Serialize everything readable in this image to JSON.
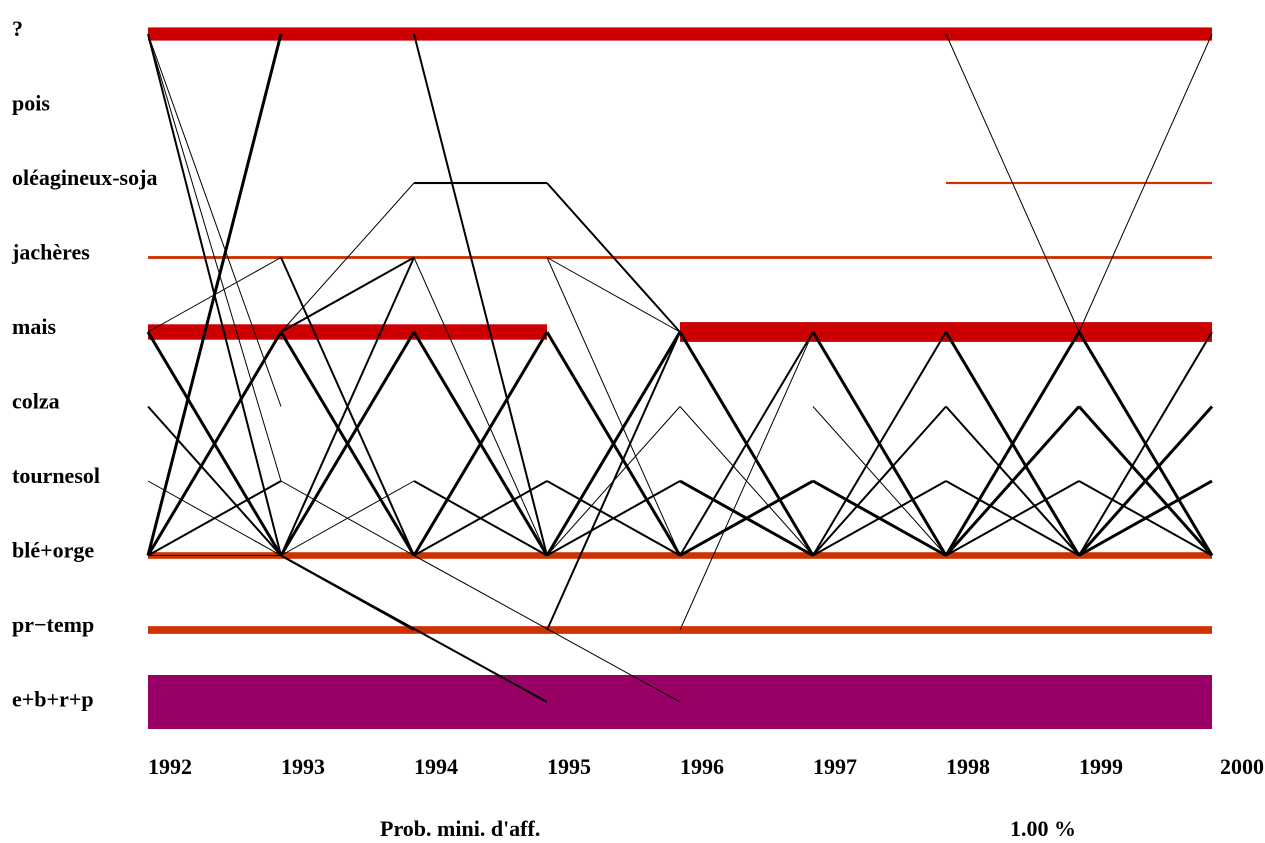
{
  "chart_data": {
    "type": "transition-diagram",
    "years": [
      "1992",
      "1993",
      "1994",
      "1995",
      "1996",
      "1997",
      "1998",
      "1999",
      "2000"
    ],
    "crops": [
      "?",
      "pois",
      "oléagineux-soja",
      "jachères",
      "mais",
      "colza",
      "tournesol",
      "blé+orge",
      "pr−temp",
      "e+b+r+p"
    ],
    "colors": {
      "red": "#cc0000",
      "orange": "#cc3300",
      "purple": "#990066",
      "line": "#000000"
    },
    "bands": [
      {
        "crop": "?",
        "from": 0,
        "to": 8,
        "weight": 6,
        "color": "red"
      },
      {
        "crop": "oléagineux-soja",
        "from": 2,
        "to": 3,
        "weight": 1,
        "color": "orange"
      },
      {
        "crop": "oléagineux-soja",
        "from": 6,
        "to": 8,
        "weight": 1,
        "color": "orange"
      },
      {
        "crop": "jachères",
        "from": 0,
        "to": 8,
        "weight": 1.3,
        "color": "orange"
      },
      {
        "crop": "mais",
        "from": 0,
        "to": 3,
        "weight": 7,
        "color": "red"
      },
      {
        "crop": "mais",
        "from": 4,
        "to": 8,
        "weight": 9,
        "color": "red"
      },
      {
        "crop": "blé+orge",
        "from": 0,
        "to": 8,
        "weight": 3,
        "color": "orange"
      },
      {
        "crop": "pr−temp",
        "from": 0,
        "to": 8,
        "weight": 3.5,
        "color": "orange"
      },
      {
        "crop": "e+b+r+p",
        "from": 0,
        "to": 8,
        "weight": 24,
        "color": "purple"
      }
    ],
    "transitions": [
      {
        "from": [
          0,
          "?"
        ],
        "to": [
          1,
          "blé+orge"
        ],
        "w": 2
      },
      {
        "from": [
          0,
          "?"
        ],
        "to": [
          1,
          "colza"
        ],
        "w": 1
      },
      {
        "from": [
          0,
          "?"
        ],
        "to": [
          1,
          "tournesol"
        ],
        "w": 1
      },
      {
        "from": [
          0,
          "blé+orge"
        ],
        "to": [
          1,
          "?"
        ],
        "w": 3
      },
      {
        "from": [
          0,
          "mais"
        ],
        "to": [
          1,
          "jachères"
        ],
        "w": 1
      },
      {
        "from": [
          0,
          "mais"
        ],
        "to": [
          1,
          "blé+orge"
        ],
        "w": 3
      },
      {
        "from": [
          0,
          "colza"
        ],
        "to": [
          1,
          "blé+orge"
        ],
        "w": 2
      },
      {
        "from": [
          0,
          "tournesol"
        ],
        "to": [
          1,
          "blé+orge"
        ],
        "w": 1
      },
      {
        "from": [
          0,
          "blé+orge"
        ],
        "to": [
          1,
          "mais"
        ],
        "w": 3
      },
      {
        "from": [
          0,
          "blé+orge"
        ],
        "to": [
          1,
          "tournesol"
        ],
        "w": 2
      },
      {
        "from": [
          0,
          "blé+orge"
        ],
        "to": [
          1,
          "blé+orge"
        ],
        "w": 1
      },
      {
        "from": [
          1,
          "mais"
        ],
        "to": [
          2,
          "oléagineux-soja"
        ],
        "w": 1
      },
      {
        "from": [
          1,
          "mais"
        ],
        "to": [
          2,
          "jachères"
        ],
        "w": 2
      },
      {
        "from": [
          1,
          "jachères"
        ],
        "to": [
          2,
          "blé+orge"
        ],
        "w": 2
      },
      {
        "from": [
          1,
          "blé+orge"
        ],
        "to": [
          2,
          "mais"
        ],
        "w": 3
      },
      {
        "from": [
          1,
          "blé+orge"
        ],
        "to": [
          2,
          "jachères"
        ],
        "w": 2
      },
      {
        "from": [
          1,
          "blé+orge"
        ],
        "to": [
          2,
          "tournesol"
        ],
        "w": 1
      },
      {
        "from": [
          1,
          "tournesol"
        ],
        "to": [
          2,
          "blé+orge"
        ],
        "w": 1
      },
      {
        "from": [
          1,
          "blé+orge"
        ],
        "to": [
          2,
          "pr−temp"
        ],
        "w": 2
      },
      {
        "from": [
          1,
          "blé+orge"
        ],
        "to": [
          3,
          "e+b+r+p"
        ],
        "w": 2
      },
      {
        "from": [
          1,
          "mais"
        ],
        "to": [
          2,
          "blé+orge"
        ],
        "w": 3
      },
      {
        "from": [
          2,
          "?"
        ],
        "to": [
          3,
          "blé+orge"
        ],
        "w": 2
      },
      {
        "from": [
          2,
          "oléagineux-soja"
        ],
        "to": [
          3,
          "oléagineux-soja"
        ],
        "w": 2
      },
      {
        "from": [
          2,
          "jachères"
        ],
        "to": [
          3,
          "blé+orge"
        ],
        "w": 1
      },
      {
        "from": [
          2,
          "mais"
        ],
        "to": [
          3,
          "blé+orge"
        ],
        "w": 3
      },
      {
        "from": [
          2,
          "blé+orge"
        ],
        "to": [
          3,
          "mais"
        ],
        "w": 3
      },
      {
        "from": [
          2,
          "blé+orge"
        ],
        "to": [
          3,
          "tournesol"
        ],
        "w": 2
      },
      {
        "from": [
          2,
          "tournesol"
        ],
        "to": [
          3,
          "blé+orge"
        ],
        "w": 2
      },
      {
        "from": [
          2,
          "blé+orge"
        ],
        "to": [
          4,
          "e+b+r+p"
        ],
        "w": 1
      },
      {
        "from": [
          3,
          "oléagineux-soja"
        ],
        "to": [
          4,
          "mais"
        ],
        "w": 2
      },
      {
        "from": [
          3,
          "jachères"
        ],
        "to": [
          4,
          "mais"
        ],
        "w": 1
      },
      {
        "from": [
          3,
          "jachères"
        ],
        "to": [
          4,
          "blé+orge"
        ],
        "w": 1
      },
      {
        "from": [
          3,
          "mais"
        ],
        "to": [
          4,
          "blé+orge"
        ],
        "w": 3
      },
      {
        "from": [
          3,
          "blé+orge"
        ],
        "to": [
          4,
          "mais"
        ],
        "w": 3
      },
      {
        "from": [
          3,
          "blé+orge"
        ],
        "to": [
          4,
          "tournesol"
        ],
        "w": 2
      },
      {
        "from": [
          3,
          "tournesol"
        ],
        "to": [
          4,
          "blé+orge"
        ],
        "w": 2
      },
      {
        "from": [
          3,
          "pr−temp"
        ],
        "to": [
          4,
          "mais"
        ],
        "w": 2
      },
      {
        "from": [
          3,
          "blé+orge"
        ],
        "to": [
          4,
          "colza"
        ],
        "w": 1
      },
      {
        "from": [
          4,
          "mais"
        ],
        "to": [
          5,
          "blé+orge"
        ],
        "w": 3
      },
      {
        "from": [
          4,
          "blé+orge"
        ],
        "to": [
          5,
          "mais"
        ],
        "w": 2
      },
      {
        "from": [
          4,
          "blé+orge"
        ],
        "to": [
          5,
          "tournesol"
        ],
        "w": 3
      },
      {
        "from": [
          4,
          "tournesol"
        ],
        "to": [
          5,
          "blé+orge"
        ],
        "w": 3
      },
      {
        "from": [
          4,
          "pr−temp"
        ],
        "to": [
          5,
          "mais"
        ],
        "w": 1
      },
      {
        "from": [
          4,
          "colza"
        ],
        "to": [
          5,
          "blé+orge"
        ],
        "w": 1
      },
      {
        "from": [
          5,
          "mais"
        ],
        "to": [
          6,
          "blé+orge"
        ],
        "w": 3
      },
      {
        "from": [
          5,
          "blé+orge"
        ],
        "to": [
          6,
          "mais"
        ],
        "w": 2
      },
      {
        "from": [
          5,
          "blé+orge"
        ],
        "to": [
          6,
          "colza"
        ],
        "w": 2
      },
      {
        "from": [
          5,
          "blé+orge"
        ],
        "to": [
          6,
          "tournesol"
        ],
        "w": 2
      },
      {
        "from": [
          5,
          "tournesol"
        ],
        "to": [
          6,
          "blé+orge"
        ],
        "w": 3
      },
      {
        "from": [
          5,
          "colza"
        ],
        "to": [
          6,
          "blé+orge"
        ],
        "w": 1
      },
      {
        "from": [
          6,
          "?"
        ],
        "to": [
          7,
          "mais"
        ],
        "w": 1
      },
      {
        "from": [
          6,
          "mais"
        ],
        "to": [
          7,
          "blé+orge"
        ],
        "w": 3
      },
      {
        "from": [
          6,
          "colza"
        ],
        "to": [
          7,
          "blé+orge"
        ],
        "w": 2
      },
      {
        "from": [
          6,
          "tournesol"
        ],
        "to": [
          7,
          "blé+orge"
        ],
        "w": 2
      },
      {
        "from": [
          6,
          "blé+orge"
        ],
        "to": [
          7,
          "mais"
        ],
        "w": 3
      },
      {
        "from": [
          6,
          "blé+orge"
        ],
        "to": [
          7,
          "colza"
        ],
        "w": 3
      },
      {
        "from": [
          6,
          "blé+orge"
        ],
        "to": [
          7,
          "tournesol"
        ],
        "w": 2
      },
      {
        "from": [
          7,
          "mais"
        ],
        "to": [
          8,
          "?"
        ],
        "w": 1
      },
      {
        "from": [
          7,
          "mais"
        ],
        "to": [
          8,
          "blé+orge"
        ],
        "w": 3
      },
      {
        "from": [
          7,
          "colza"
        ],
        "to": [
          8,
          "blé+orge"
        ],
        "w": 3
      },
      {
        "from": [
          7,
          "tournesol"
        ],
        "to": [
          8,
          "blé+orge"
        ],
        "w": 2
      },
      {
        "from": [
          7,
          "blé+orge"
        ],
        "to": [
          8,
          "mais"
        ],
        "w": 2
      },
      {
        "from": [
          7,
          "blé+orge"
        ],
        "to": [
          8,
          "colza"
        ],
        "w": 3
      },
      {
        "from": [
          7,
          "blé+orge"
        ],
        "to": [
          8,
          "tournesol"
        ],
        "w": 3
      }
    ],
    "footer": {
      "left_label": "Prob. mini. d'aff.",
      "right_value": "1.00 %"
    }
  }
}
